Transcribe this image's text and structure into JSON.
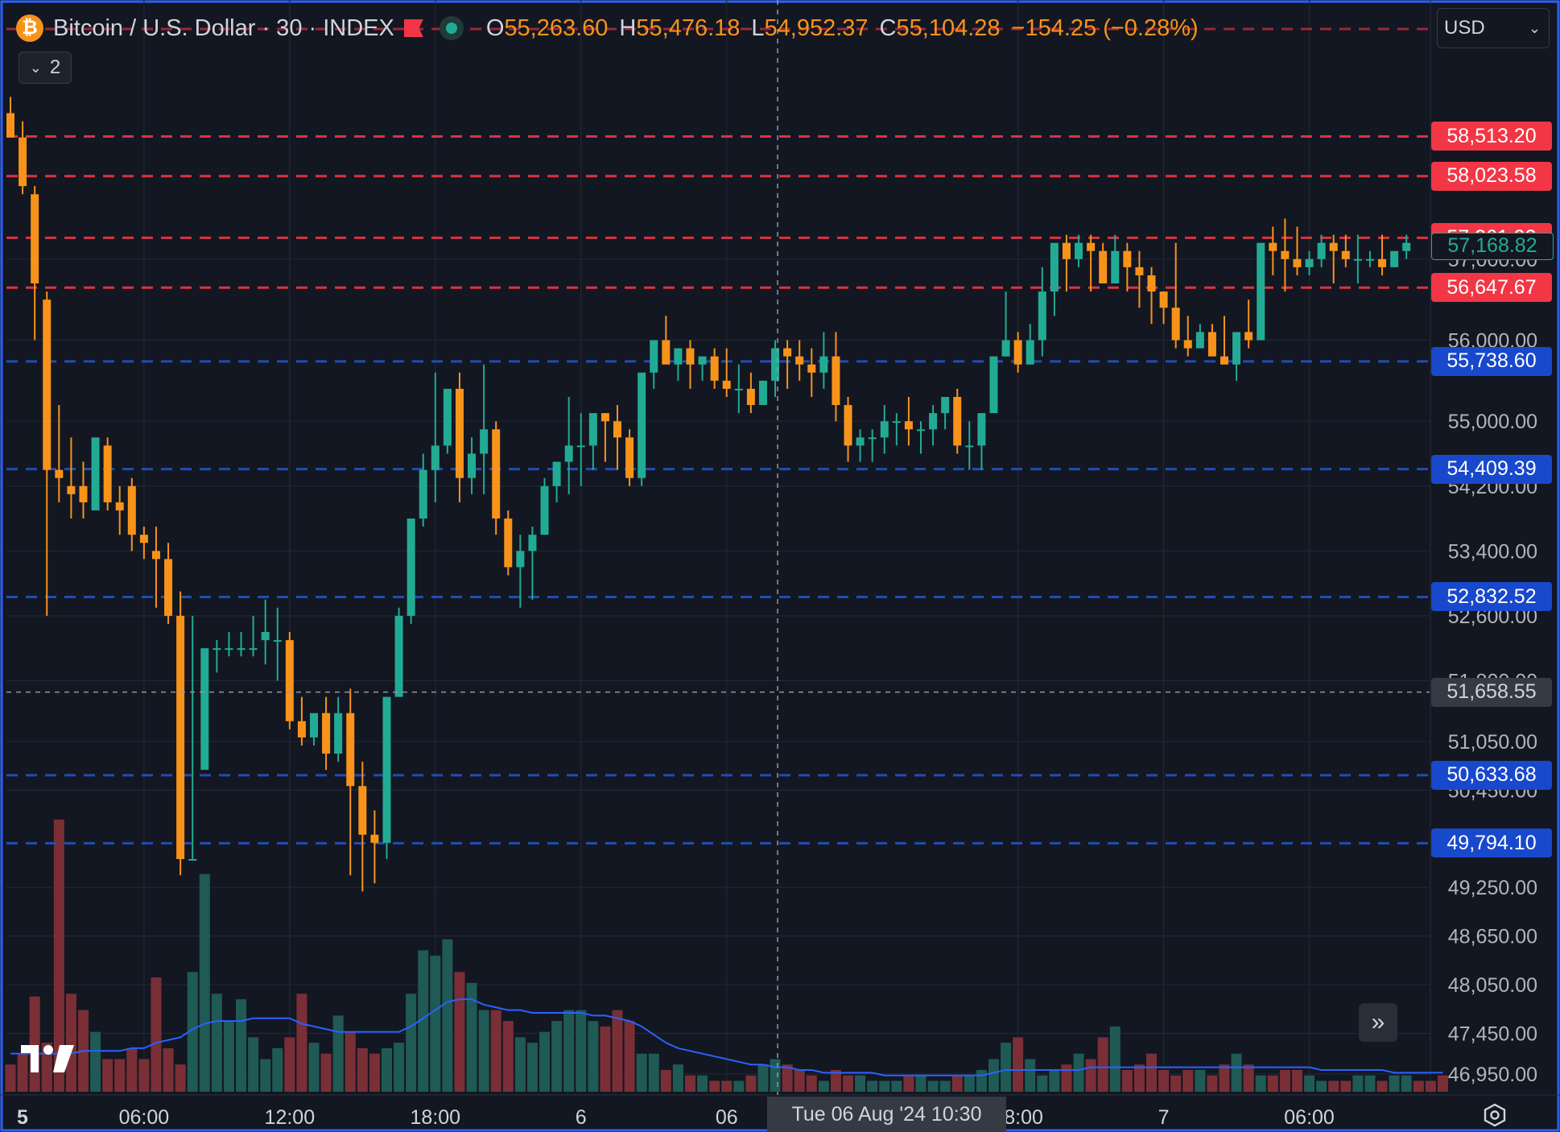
{
  "header": {
    "symbol": "Bitcoin / U.S. Dollar · 30 · INDEX",
    "coin_glyph": "₿",
    "ohlc": [
      {
        "k": "O",
        "v": "55,263.60"
      },
      {
        "k": "H",
        "v": "55,476.18"
      },
      {
        "k": "L",
        "v": "54,952.37"
      },
      {
        "k": "C",
        "v": "55,104.28"
      }
    ],
    "change": "−154.25 (−0.28%)",
    "collapse_label": "2",
    "currency": "USD"
  },
  "crosshair": {
    "price_label": "51,658.55",
    "time_label": "Tue 06 Aug '24    10:30",
    "price": 51658.55,
    "bar_index": 63
  },
  "chart_data": {
    "type": "candlestick",
    "interval": "30",
    "y_axis": {
      "side": "right",
      "ylim": [
        46690,
        59600
      ],
      "ticks": [
        56000,
        55000,
        54200,
        53400,
        52600,
        51800,
        51050,
        50450,
        49250,
        48650,
        48050,
        47450,
        46950,
        57000
      ],
      "tick_labels": [
        "56,000.00",
        "55,000.00",
        "54,200.00",
        "53,400.00",
        "52,600.00",
        "51,800.00",
        "51,050.00",
        "50,450.00",
        "49,250.00",
        "48,650.00",
        "48,050.00",
        "47,450.00",
        "46,950.00",
        "57,000.00"
      ]
    },
    "x_axis": {
      "tick_labels": [
        {
          "label": "5",
          "bar": 0,
          "bold": true
        },
        {
          "label": "06:00",
          "bar": 11
        },
        {
          "label": "12:00",
          "bar": 23
        },
        {
          "label": "18:00",
          "bar": 35
        },
        {
          "label": "6",
          "bar": 47
        },
        {
          "label": "06",
          "bar": 59
        },
        {
          "label": "18:00",
          "bar": 83
        },
        {
          "label": "7",
          "bar": 95
        },
        {
          "label": "06:00",
          "bar": 107
        }
      ]
    },
    "grid": true,
    "horizontal_lines": [
      {
        "price": 58513.2,
        "label": "58,513.20",
        "color": "red"
      },
      {
        "price": 58023.58,
        "label": "58,023.58",
        "color": "red"
      },
      {
        "price": 57261.93,
        "label": "57,261.93",
        "color": "red"
      },
      {
        "price": 56647.67,
        "label": "56,647.67",
        "color": "red"
      },
      {
        "price": 55738.6,
        "label": "55,738.60",
        "color": "blue"
      },
      {
        "price": 54409.39,
        "label": "54,409.39",
        "color": "blue"
      },
      {
        "price": 52832.52,
        "label": "52,832.52",
        "color": "blue"
      },
      {
        "price": 50633.68,
        "label": "50,633.68",
        "color": "blue"
      },
      {
        "price": 49794.1,
        "label": "49,794.10",
        "color": "blue"
      }
    ],
    "last_price": {
      "price": 57168.82,
      "label": "57,168.82"
    },
    "candles": [
      [
        58800,
        59000,
        58500,
        58500
      ],
      [
        58500,
        58700,
        57900,
        57800
      ],
      [
        57800,
        57900,
        56700,
        56000
      ],
      [
        56500,
        56600,
        54400,
        52600
      ],
      [
        54400,
        55200,
        54300,
        54000
      ],
      [
        54200,
        54800,
        54100,
        53800
      ],
      [
        54200,
        54500,
        54000,
        53800
      ],
      [
        53900,
        54700,
        54800,
        54000
      ],
      [
        54700,
        54800,
        54000,
        53900
      ],
      [
        54000,
        54200,
        53900,
        53600
      ],
      [
        54200,
        54300,
        53600,
        53400
      ],
      [
        53600,
        53700,
        53500,
        53300
      ],
      [
        53400,
        53700,
        53300,
        52700
      ],
      [
        53300,
        53500,
        52600,
        52500
      ],
      [
        52600,
        52900,
        49600,
        49400
      ],
      [
        49600,
        52600,
        49600,
        49600
      ],
      [
        50700,
        52100,
        52200,
        50800
      ],
      [
        52200,
        52300,
        52200,
        51900
      ],
      [
        52200,
        52400,
        52200,
        52100
      ],
      [
        52200,
        52400,
        52200,
        52100
      ],
      [
        52200,
        52600,
        52200,
        52100
      ],
      [
        52300,
        52800,
        52400,
        52000
      ],
      [
        52300,
        52700,
        52300,
        51800
      ],
      [
        52300,
        52400,
        51300,
        51200
      ],
      [
        51300,
        51600,
        51100,
        51000
      ],
      [
        51100,
        51200,
        51400,
        51000
      ],
      [
        51400,
        51600,
        50900,
        50700
      ],
      [
        50900,
        51600,
        51400,
        50800
      ],
      [
        51400,
        51700,
        50500,
        49400
      ],
      [
        50500,
        50800,
        49900,
        49200
      ],
      [
        49900,
        50200,
        49800,
        49300
      ],
      [
        49800,
        49900,
        51600,
        49600
      ],
      [
        51600,
        52700,
        52600,
        51800
      ],
      [
        52600,
        53100,
        53800,
        52500
      ],
      [
        53800,
        54600,
        54400,
        53700
      ],
      [
        54400,
        55600,
        54700,
        54000
      ],
      [
        54700,
        55000,
        55400,
        54600
      ],
      [
        55400,
        55600,
        54300,
        54000
      ],
      [
        54300,
        54800,
        54600,
        54100
      ],
      [
        54600,
        55700,
        54900,
        54100
      ],
      [
        54900,
        55000,
        53800,
        53600
      ],
      [
        53800,
        53900,
        53200,
        53100
      ],
      [
        53200,
        53600,
        53400,
        52700
      ],
      [
        53400,
        53700,
        53600,
        52800
      ],
      [
        53600,
        54300,
        54200,
        53600
      ],
      [
        54200,
        54500,
        54500,
        54000
      ],
      [
        54500,
        55300,
        54700,
        54100
      ],
      [
        54700,
        55100,
        54700,
        54200
      ],
      [
        54700,
        55000,
        55100,
        54400
      ],
      [
        55100,
        55100,
        55000,
        54500
      ],
      [
        55000,
        55200,
        54800,
        54400
      ],
      [
        54800,
        54900,
        54300,
        54200
      ],
      [
        54300,
        54800,
        55600,
        54200
      ],
      [
        55600,
        56000,
        56000,
        55400
      ],
      [
        56000,
        56300,
        55700,
        55700
      ],
      [
        55700,
        55900,
        55900,
        55500
      ],
      [
        55900,
        56000,
        55700,
        55400
      ],
      [
        55700,
        55800,
        55800,
        55500
      ],
      [
        55800,
        55900,
        55500,
        55400
      ],
      [
        55500,
        55900,
        55400,
        55300
      ],
      [
        55400,
        55700,
        55400,
        55100
      ],
      [
        55400,
        55600,
        55200,
        55100
      ],
      [
        55200,
        55500,
        55500,
        55200
      ],
      [
        55500,
        56000,
        55900,
        55300
      ],
      [
        55900,
        56000,
        55800,
        55400
      ],
      [
        55800,
        56000,
        55700,
        55500
      ],
      [
        55700,
        55900,
        55600,
        55300
      ],
      [
        55600,
        56100,
        55800,
        55400
      ],
      [
        55800,
        56100,
        55200,
        55000
      ],
      [
        55200,
        55300,
        54700,
        54500
      ],
      [
        54700,
        54900,
        54800,
        54500
      ],
      [
        54800,
        54900,
        54800,
        54500
      ],
      [
        54800,
        55200,
        55000,
        54600
      ],
      [
        55000,
        55100,
        55000,
        54700
      ],
      [
        55000,
        55300,
        54900,
        54700
      ],
      [
        54900,
        55000,
        54900,
        54600
      ],
      [
        54900,
        55200,
        55100,
        54700
      ],
      [
        55100,
        55200,
        55300,
        54900
      ],
      [
        55300,
        55400,
        54700,
        54600
      ],
      [
        54700,
        55000,
        54700,
        54400
      ],
      [
        54700,
        55100,
        55100,
        54400
      ],
      [
        55100,
        55800,
        55800,
        55100
      ],
      [
        55800,
        56600,
        56000,
        55800
      ],
      [
        56000,
        56100,
        55700,
        55600
      ],
      [
        55700,
        56200,
        56000,
        55700
      ],
      [
        56000,
        56900,
        56600,
        55800
      ],
      [
        56600,
        56900,
        57200,
        56300
      ],
      [
        57200,
        57300,
        57000,
        56600
      ],
      [
        57000,
        57300,
        57200,
        56900
      ],
      [
        57200,
        57300,
        57100,
        56600
      ],
      [
        57100,
        57200,
        56700,
        56700
      ],
      [
        56700,
        57300,
        57100,
        56900
      ],
      [
        57100,
        57200,
        56900,
        56600
      ],
      [
        56900,
        57100,
        56800,
        56400
      ],
      [
        56800,
        56900,
        56600,
        56200
      ],
      [
        56600,
        56600,
        56400,
        56200
      ],
      [
        56400,
        57200,
        56000,
        55900
      ],
      [
        56000,
        56300,
        55900,
        55800
      ],
      [
        55900,
        56200,
        56100,
        55900
      ],
      [
        56100,
        56200,
        55800,
        55800
      ],
      [
        55800,
        56300,
        55700,
        55700
      ],
      [
        55700,
        56000,
        56100,
        55500
      ],
      [
        56100,
        56500,
        56000,
        55900
      ],
      [
        56000,
        56900,
        57200,
        56000
      ],
      [
        57200,
        57400,
        57100,
        56800
      ],
      [
        57100,
        57500,
        57000,
        56600
      ],
      [
        57000,
        57400,
        56900,
        56800
      ],
      [
        56900,
        57100,
        57000,
        56800
      ],
      [
        57000,
        57300,
        57200,
        56900
      ],
      [
        57200,
        57300,
        57100,
        56700
      ],
      [
        57100,
        57300,
        57000,
        56900
      ],
      [
        57000,
        57300,
        57000,
        56700
      ],
      [
        57000,
        57100,
        57000,
        56900
      ],
      [
        57000,
        57300,
        56900,
        56800
      ],
      [
        56900,
        57000,
        57100,
        56900
      ],
      [
        57100,
        57300,
        57200,
        57000
      ]
    ],
    "volume": {
      "scale_max": 100,
      "values": [
        10,
        14,
        35,
        18,
        100,
        36,
        30,
        22,
        12,
        12,
        16,
        12,
        42,
        16,
        10,
        44,
        80,
        36,
        26,
        34,
        20,
        12,
        16,
        20,
        36,
        18,
        14,
        28,
        22,
        16,
        14,
        16,
        18,
        36,
        52,
        50,
        56,
        44,
        40,
        30,
        30,
        26,
        20,
        18,
        22,
        26,
        30,
        30,
        26,
        24,
        30,
        26,
        14,
        14,
        8,
        10,
        6,
        6,
        4,
        4,
        4,
        6,
        10,
        12,
        10,
        8,
        6,
        4,
        8,
        6,
        6,
        4,
        4,
        4,
        6,
        6,
        4,
        4,
        6,
        6,
        8,
        12,
        18,
        20,
        12,
        6,
        8,
        10,
        14,
        12,
        20,
        24,
        8,
        10,
        14,
        8,
        6,
        8,
        8,
        6,
        10,
        14,
        10,
        6,
        6,
        8,
        8,
        6,
        4,
        4,
        4,
        6,
        6,
        4,
        6,
        6,
        4,
        4,
        6
      ],
      "ma": [
        14,
        14,
        14,
        14,
        14,
        14,
        15,
        15,
        15,
        15,
        16,
        16,
        18,
        19,
        20,
        23,
        25,
        26,
        26,
        26,
        27,
        27,
        27,
        27,
        25,
        24,
        23,
        22,
        22,
        22,
        22,
        22,
        22,
        24,
        27,
        30,
        33,
        34,
        34,
        32,
        31,
        30,
        30,
        29,
        29,
        29,
        29,
        29,
        28,
        28,
        27,
        26,
        24,
        21,
        18,
        16,
        15,
        14,
        13,
        12,
        11,
        10,
        10,
        9,
        9,
        8,
        8,
        7,
        7,
        7,
        7,
        7,
        6,
        6,
        6,
        6,
        6,
        6,
        6,
        6,
        6,
        7,
        8,
        8,
        8,
        8,
        8,
        8,
        8,
        9,
        9,
        9,
        9,
        9,
        9,
        9,
        9,
        9,
        9,
        9,
        9,
        9,
        9,
        9,
        9,
        9,
        9,
        9,
        8,
        8,
        8,
        8,
        8,
        8,
        7,
        7,
        7,
        7,
        7
      ]
    }
  },
  "colors": {
    "background": "#131722",
    "up": "#22ab94",
    "down": "#f7931a",
    "vol_up": "#1f5a55",
    "vol_down": "#7a2f36",
    "vol_ma": "#2962ff",
    "line_red": "#f23645",
    "line_blue": "#2452c4",
    "grid": "#232734"
  },
  "icons": {
    "scroll": "double-chevron-right-icon",
    "settings": "settings-hexagon-icon",
    "logo": "tradingview-logo"
  },
  "scroll_glyph": "»"
}
